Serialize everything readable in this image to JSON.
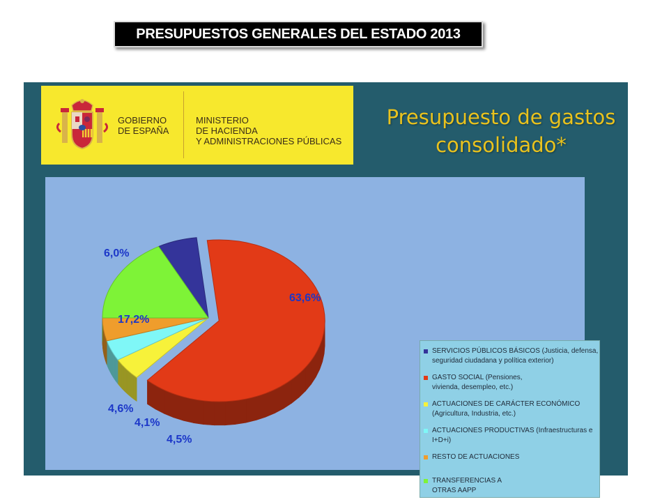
{
  "header": {
    "label": "PRESUPUESTOS GENERALES DEL ESTADO 2013"
  },
  "banner": {
    "gov_line1": "GOBIERNO",
    "gov_line2": "DE ESPAÑA",
    "ministry_line1": "MINISTERIO",
    "ministry_line2": "DE HACIENDA",
    "ministry_line3": "Y ADMINISTRACIONES PÚBLICAS"
  },
  "slide": {
    "title_line1": "Presupuesto de gastos",
    "title_line2": "consolidado*"
  },
  "colors": {
    "banner_yellow": "#f7e82d",
    "slide_bg": "#245c6c",
    "panel_bg": "#8db2e2",
    "title": "#e9c21e"
  },
  "chart_data": {
    "type": "pie",
    "title": "",
    "categories": [
      "SERVICIOS PÚBLICOS BÁSICOS (Justicia, defensa, seguridad ciudadana y política exterior)",
      "GASTO SOCIAL (Pensiones, vivienda, desempleo, etc.)",
      "ACTUACIONES DE CARÁCTER ECONÓMICO (Agricultura, Industria, etc.)",
      "ACTUACIONES PRODUCTIVAS (Infraestructuras e I+D+i)",
      "RESTO DE ACTUACIONES",
      "TRANSFERENCIAS A OTRAS AAPP"
    ],
    "values": [
      6.0,
      63.6,
      4.5,
      4.1,
      4.6,
      17.2
    ],
    "value_labels": [
      "6,0%",
      "63,6%",
      "4,5%",
      "4,1%",
      "4,6%",
      "17,2%"
    ],
    "colors": [
      "#34349a",
      "#e23a17",
      "#f7f23a",
      "#7ff7f7",
      "#ef9d2c",
      "#7ef337"
    ],
    "legend_labels": [
      "SERVICIOS PÚBLICOS BÁSICOS (Justicia, defensa,\nseguridad ciudadana y política exterior)",
      "GASTO SOCIAL (Pensiones,\nvivienda, desempleo, etc.)",
      "ACTUACIONES DE CARÁCTER ECONÓMICO\n(Agricultura, Industria, etc.)",
      "ACTUACIONES PRODUCTIVAS (Infraestructuras e\nI+D+i)",
      "RESTO DE ACTUACIONES",
      "TRANSFERENCIAS A\nOTRAS AAPP"
    ],
    "legend_position": "right",
    "exploded": "GASTO SOCIAL (Pensiones, vivienda, desempleo, etc.)",
    "style": "3d"
  }
}
